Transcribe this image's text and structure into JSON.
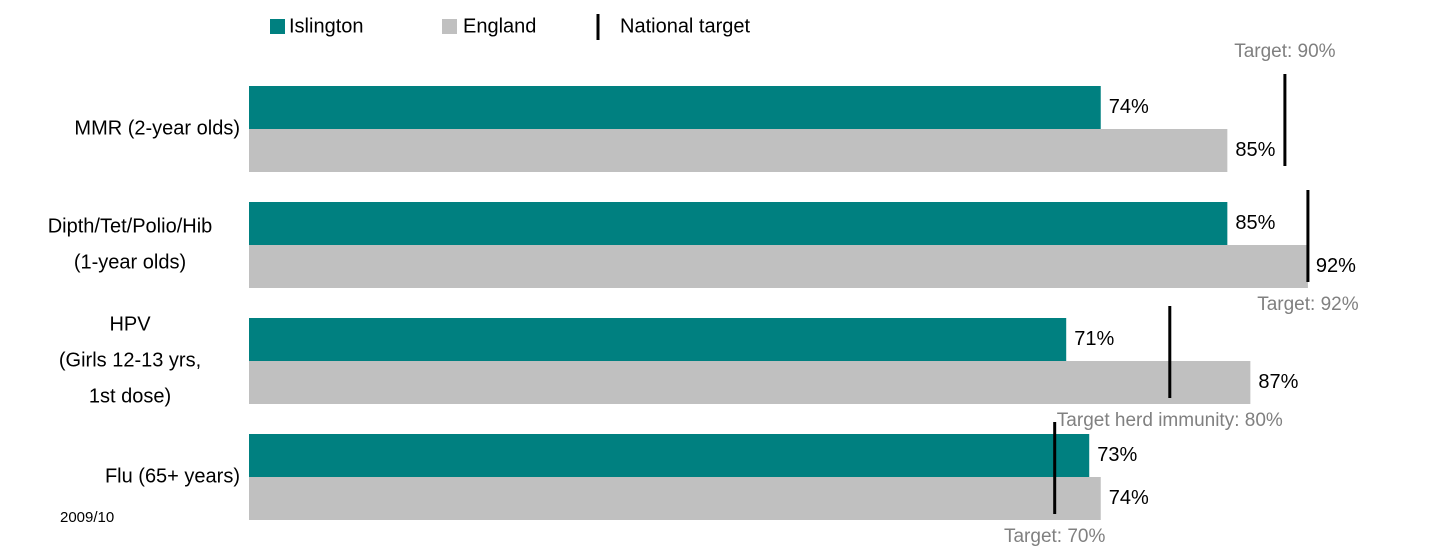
{
  "chart_data": {
    "type": "hbar",
    "categories": [
      [
        "MMR (2-year olds)"
      ],
      [
        "Dipth/Tet/Polio/Hib",
        "(1-year olds)"
      ],
      [
        "HPV",
        "(Girls 12-13 yrs,",
        "1st dose)"
      ],
      [
        "Flu (65+ years)"
      ]
    ],
    "series": [
      {
        "name": "Islington",
        "color": "#008080",
        "values": [
          74,
          85,
          71,
          73
        ],
        "value_labels": [
          "74%",
          "85%",
          "71%",
          "73%"
        ]
      },
      {
        "name": "England",
        "color": "#c0c0c0",
        "values": [
          85,
          92,
          87,
          74
        ],
        "value_labels": [
          "85%",
          "92%",
          "87%",
          "74%"
        ]
      }
    ],
    "targets": {
      "name": "National target",
      "color": "#000000",
      "values": [
        90,
        92,
        80,
        70
      ],
      "labels": [
        "Target: 90%",
        "Target: 92%",
        "Target herd immunity: 80%",
        "Target: 70%"
      ],
      "label_positions": [
        "above",
        "below",
        "below",
        "below"
      ]
    },
    "xlim": [
      0,
      100
    ],
    "note": "2009/10"
  }
}
